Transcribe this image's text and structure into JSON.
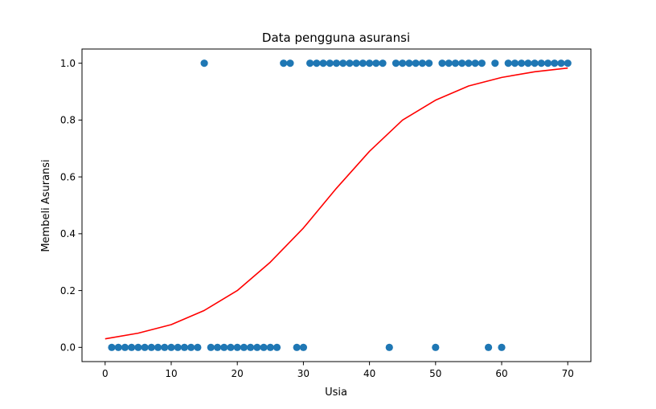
{
  "chart_data": {
    "type": "scatter",
    "title": "Data pengguna asuransi",
    "xlabel": "Usia",
    "ylabel": "Membeli Asuransi",
    "xlim": [
      -3.5,
      73.5
    ],
    "ylim": [
      -0.05,
      1.05
    ],
    "xticks": [
      0,
      10,
      20,
      30,
      40,
      50,
      60,
      70
    ],
    "xtick_labels": [
      "0",
      "10",
      "20",
      "30",
      "40",
      "50",
      "60",
      "70"
    ],
    "yticks": [
      0.0,
      0.2,
      0.4,
      0.6,
      0.8,
      1.0
    ],
    "ytick_labels": [
      "0.0",
      "0.2",
      "0.4",
      "0.6",
      "0.8",
      "1.0"
    ],
    "grid": false,
    "series": [
      {
        "type": "scatter",
        "color": "#1f77b4",
        "points": [
          [
            1,
            0
          ],
          [
            2,
            0
          ],
          [
            3,
            0
          ],
          [
            4,
            0
          ],
          [
            5,
            0
          ],
          [
            6,
            0
          ],
          [
            7,
            0
          ],
          [
            8,
            0
          ],
          [
            9,
            0
          ],
          [
            10,
            0
          ],
          [
            11,
            0
          ],
          [
            12,
            0
          ],
          [
            13,
            0
          ],
          [
            14,
            0
          ],
          [
            15,
            1
          ],
          [
            16,
            0
          ],
          [
            17,
            0
          ],
          [
            18,
            0
          ],
          [
            19,
            0
          ],
          [
            20,
            0
          ],
          [
            21,
            0
          ],
          [
            22,
            0
          ],
          [
            23,
            0
          ],
          [
            24,
            0
          ],
          [
            25,
            0
          ],
          [
            26,
            0
          ],
          [
            27,
            1
          ],
          [
            28,
            1
          ],
          [
            29,
            0
          ],
          [
            30,
            0
          ],
          [
            31,
            1
          ],
          [
            32,
            1
          ],
          [
            33,
            1
          ],
          [
            34,
            1
          ],
          [
            35,
            1
          ],
          [
            36,
            1
          ],
          [
            37,
            1
          ],
          [
            38,
            1
          ],
          [
            39,
            1
          ],
          [
            40,
            1
          ],
          [
            41,
            1
          ],
          [
            42,
            1
          ],
          [
            43,
            0
          ],
          [
            44,
            1
          ],
          [
            45,
            1
          ],
          [
            46,
            1
          ],
          [
            47,
            1
          ],
          [
            48,
            1
          ],
          [
            49,
            1
          ],
          [
            50,
            0
          ],
          [
            51,
            1
          ],
          [
            52,
            1
          ],
          [
            53,
            1
          ],
          [
            54,
            1
          ],
          [
            55,
            1
          ],
          [
            56,
            1
          ],
          [
            57,
            1
          ],
          [
            58,
            0
          ],
          [
            59,
            1
          ],
          [
            60,
            0
          ],
          [
            61,
            1
          ],
          [
            62,
            1
          ],
          [
            63,
            1
          ],
          [
            64,
            1
          ],
          [
            65,
            1
          ],
          [
            66,
            1
          ],
          [
            67,
            1
          ],
          [
            68,
            1
          ],
          [
            69,
            1
          ],
          [
            70,
            1
          ]
        ]
      },
      {
        "type": "line",
        "color": "#ff0000",
        "points": [
          [
            0,
            0.03
          ],
          [
            5,
            0.05
          ],
          [
            10,
            0.08
          ],
          [
            15,
            0.13
          ],
          [
            20,
            0.2
          ],
          [
            25,
            0.3
          ],
          [
            30,
            0.42
          ],
          [
            35,
            0.56
          ],
          [
            40,
            0.69
          ],
          [
            45,
            0.8
          ],
          [
            50,
            0.87
          ],
          [
            55,
            0.92
          ],
          [
            60,
            0.95
          ],
          [
            65,
            0.97
          ],
          [
            70,
            0.983
          ]
        ]
      }
    ]
  }
}
